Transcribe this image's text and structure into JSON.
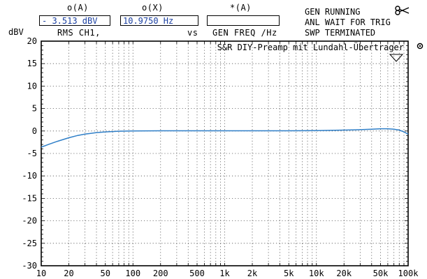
{
  "header": {
    "col1_title": "o(A)",
    "col2_title": "o(X)",
    "col3_title": "*(A)",
    "readout1": "- 3.513 dBV",
    "readout2": "10.9750  Hz",
    "readout3": "",
    "sub1": "RMS   CH1,",
    "sub2": "vs",
    "sub3": "GEN FREQ /Hz",
    "status_line1": "GEN RUNNING",
    "status_line2": "ANL WAIT FOR TRIG",
    "status_line3": "SWP TERMINATED",
    "corner_icon": "scissors-icon",
    "side_icon": "target-icon"
  },
  "chart_data": {
    "type": "line",
    "title": "S&R DIY-Preamp mit Lundahl-Übertrager",
    "ylabel": "dBV",
    "xlabel": "",
    "xscale": "log",
    "xlim": [
      10,
      100000
    ],
    "ylim": [
      -30,
      20
    ],
    "grid": true,
    "x_ticks": [
      10,
      20,
      50,
      100,
      200,
      500,
      1000,
      2000,
      5000,
      10000,
      20000,
      50000,
      100000
    ],
    "x_tick_labels": [
      "10",
      "20",
      "50",
      "100",
      "200",
      "500",
      "1k",
      "2k",
      "5k",
      "10k",
      "20k",
      "50k",
      "100k"
    ],
    "y_ticks": [
      20,
      15,
      10,
      5,
      0,
      -5,
      -10,
      -15,
      -20,
      -25,
      -30
    ],
    "y_tick_labels": [
      "20",
      "15",
      "10",
      "5",
      "0",
      "-5",
      "-10",
      "-15",
      "-20",
      "-25",
      "-30"
    ],
    "series": [
      {
        "color": "#2f7fc8",
        "x": [
          10,
          12,
          15,
          20,
          25,
          30,
          40,
          50,
          70,
          100,
          200,
          500,
          1000,
          2000,
          5000,
          10000,
          20000,
          30000,
          40000,
          50000,
          60000,
          70000,
          80000,
          90000,
          100000
        ],
        "y": [
          -3.6,
          -3.0,
          -2.3,
          -1.5,
          -1.0,
          -0.7,
          -0.35,
          -0.2,
          -0.05,
          0.0,
          0.05,
          0.05,
          0.05,
          0.05,
          0.05,
          0.1,
          0.2,
          0.3,
          0.4,
          0.5,
          0.5,
          0.4,
          0.2,
          -0.2,
          -0.7
        ]
      }
    ]
  }
}
